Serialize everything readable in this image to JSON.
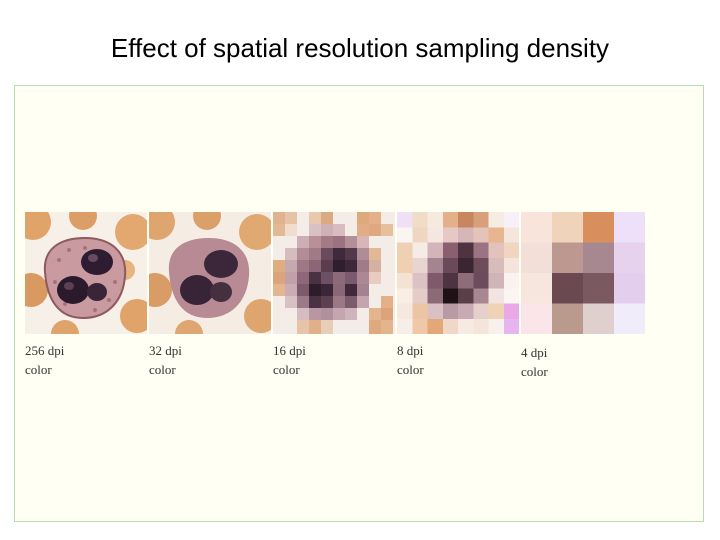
{
  "slide": {
    "title": "Effect of spatial resolution sampling density"
  },
  "colors": {
    "frame_background": "#fffff4",
    "frame_border": "#b6dcb0",
    "rbc_orange": "#e0a36a",
    "cell_pink": "#c99aa0",
    "nucleus_dark": "#2e1d30",
    "background_light": "#f6f1ec"
  },
  "panels": [
    {
      "resolution": "256 dpi",
      "mode": "color"
    },
    {
      "resolution": "32 dpi",
      "mode": "color"
    },
    {
      "resolution": "16 dpi",
      "mode": "color"
    },
    {
      "resolution": "8 dpi",
      "mode": "color"
    },
    {
      "resolution": "4 dpi",
      "mode": "color"
    }
  ]
}
